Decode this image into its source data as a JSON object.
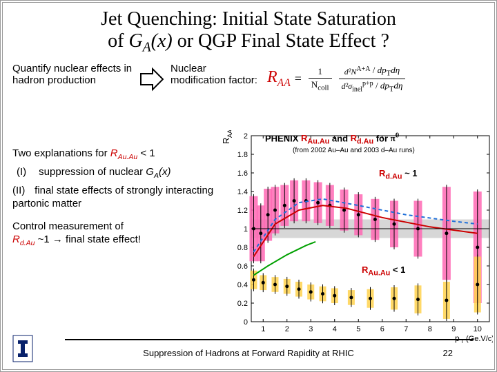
{
  "title_line1_a": "Jet Quenching: Initial State Saturation",
  "title_line2_a": "of ",
  "title_line2_ga": "G",
  "title_line2_sub": "A",
  "title_line2_x": "(x)",
  "title_line2_b": " or QGP Final State Effect ?",
  "quantify": "Quantify  nuclear effects in hadron production",
  "nmf": "Nuclear modification factor:",
  "raa_R": "R",
  "raa_AA": "AA",
  "eq_eq": "=",
  "eq_num_pre": "1",
  "eq_ncoll_top": "N",
  "eq_ncoll_sub": "coll",
  "eq_d2N": "d²N",
  "eq_AA_sup": "A+A",
  "eq_d2sigma": "d²σ",
  "eq_pp_sup": "p+p",
  "eq_inel": "inel",
  "eq_dpt": "dp",
  "eq_dpt_sub": "T",
  "eq_deta": "dη",
  "expl_head_a": "Two explanations for ",
  "expl_head_r": "R",
  "expl_head_rsub": "Au.Au",
  "expl_head_b": " < 1",
  "expl_i_label": "(I)",
  "expl_i_text_a": " suppression of nuclear ",
  "expl_i_ga": "G",
  "expl_i_gsub": "A",
  "expl_i_x": "(x)",
  "expl_ii_label": "(II)",
  "expl_ii_text": " final state effects of strongly interacting partonic matter",
  "ctrl_a": "Control measurement of",
  "ctrl_rdau_R": "R",
  "ctrl_rdau_sub": "d.Au",
  "ctrl_tilde": " ~1 ",
  "ctrl_arrow": "→",
  "ctrl_b": " final state effect!",
  "chart": {
    "ylabel": "R_AA",
    "xlabel": "p_T",
    "xlabel_unit": "(Ge.V/c)",
    "ylim": [
      0,
      2.0
    ],
    "xlim": [
      0.5,
      10.5
    ],
    "yticks": [
      0,
      0.2,
      0.4,
      0.6,
      0.8,
      1,
      1.2,
      1.4,
      1.6,
      1.8,
      2
    ],
    "xticks": [
      1,
      2,
      3,
      4,
      5,
      6,
      7,
      8,
      9,
      10
    ],
    "grid_color": "#f0f0f0",
    "axis_color": "#000000",
    "band_color": "#bcbcbc",
    "band_y": [
      0.9,
      1.1
    ],
    "series": {
      "dAu_boxes": {
        "color": "#ff69b4",
        "points": [
          {
            "x": 0.6,
            "y": 1.0,
            "ey": 0.35
          },
          {
            "x": 0.9,
            "y": 0.95,
            "ey": 0.3
          },
          {
            "x": 1.2,
            "y": 1.15,
            "ey": 0.28
          },
          {
            "x": 1.5,
            "y": 1.2,
            "ey": 0.25
          },
          {
            "x": 1.9,
            "y": 1.25,
            "ey": 0.22
          },
          {
            "x": 2.3,
            "y": 1.3,
            "ey": 0.22
          },
          {
            "x": 2.8,
            "y": 1.3,
            "ey": 0.22
          },
          {
            "x": 3.3,
            "y": 1.28,
            "ey": 0.22
          },
          {
            "x": 3.8,
            "y": 1.25,
            "ey": 0.22
          },
          {
            "x": 4.4,
            "y": 1.2,
            "ey": 0.22
          },
          {
            "x": 5.0,
            "y": 1.15,
            "ey": 0.22
          },
          {
            "x": 5.7,
            "y": 1.1,
            "ey": 0.22
          },
          {
            "x": 6.5,
            "y": 1.05,
            "ey": 0.25
          },
          {
            "x": 7.5,
            "y": 1.0,
            "ey": 0.3
          },
          {
            "x": 8.7,
            "y": 0.95,
            "ey": 0.5
          },
          {
            "x": 10.0,
            "y": 0.8,
            "ey": 0.6
          }
        ]
      },
      "AuAu_boxes": {
        "color": "#ffd24d",
        "points": [
          {
            "x": 0.6,
            "y": 0.45,
            "ey": 0.1
          },
          {
            "x": 1.0,
            "y": 0.42,
            "ey": 0.08
          },
          {
            "x": 1.5,
            "y": 0.4,
            "ey": 0.08
          },
          {
            "x": 2.0,
            "y": 0.38,
            "ey": 0.08
          },
          {
            "x": 2.5,
            "y": 0.35,
            "ey": 0.08
          },
          {
            "x": 3.0,
            "y": 0.32,
            "ey": 0.08
          },
          {
            "x": 3.5,
            "y": 0.3,
            "ey": 0.08
          },
          {
            "x": 4.0,
            "y": 0.28,
            "ey": 0.08
          },
          {
            "x": 4.7,
            "y": 0.26,
            "ey": 0.08
          },
          {
            "x": 5.5,
            "y": 0.25,
            "ey": 0.1
          },
          {
            "x": 6.5,
            "y": 0.25,
            "ey": 0.12
          },
          {
            "x": 7.5,
            "y": 0.24,
            "ey": 0.15
          },
          {
            "x": 8.7,
            "y": 0.23,
            "ey": 0.2
          },
          {
            "x": 10.0,
            "y": 0.4,
            "ey": 0.3
          }
        ]
      },
      "red_line": {
        "color": "#cc0000",
        "pts": [
          [
            0.6,
            0.7
          ],
          [
            1.5,
            1.05
          ],
          [
            2.5,
            1.2
          ],
          [
            3.5,
            1.25
          ],
          [
            4.5,
            1.22
          ],
          [
            6,
            1.12
          ],
          [
            8,
            1.02
          ],
          [
            10,
            0.95
          ]
        ]
      },
      "blue_line": {
        "color": "#1e6fd9",
        "dash": "5 4",
        "pts": [
          [
            0.6,
            0.75
          ],
          [
            1.5,
            1.1
          ],
          [
            2.5,
            1.28
          ],
          [
            3.5,
            1.32
          ],
          [
            5,
            1.25
          ],
          [
            7,
            1.15
          ],
          [
            9,
            1.08
          ],
          [
            10,
            1.05
          ]
        ]
      },
      "green_line": {
        "color": "#00a000",
        "pts": [
          [
            0.6,
            0.5
          ],
          [
            1.2,
            0.6
          ],
          [
            2,
            0.72
          ],
          [
            2.8,
            0.82
          ],
          [
            3.2,
            0.86
          ]
        ]
      }
    },
    "ann_phenix_a": "PHENIX  ",
    "ann_phenix_r1": "R",
    "ann_phenix_r1sub": "Au.Au",
    "ann_phenix_and": " and ",
    "ann_phenix_r2": "R",
    "ann_phenix_r2sub": "d.Au",
    "ann_phenix_for": " for ",
    "ann_phenix_pi": "π",
    "ann_phenix_pi0": "0",
    "ann_runs": "(from 2002 Au–Au and 2003 d–Au runs)",
    "ann_rdau_r": "R",
    "ann_rdau_sub": "d.Au",
    "ann_rdau_t": " ~ 1",
    "ann_rauau_r": "R",
    "ann_rauau_sub": "Au.Au",
    "ann_rauau_t": " < 1"
  },
  "footer": "Suppression of Hadrons at Forward Rapidity at RHIC",
  "pagenum": "22",
  "logo_color": "#08216b"
}
